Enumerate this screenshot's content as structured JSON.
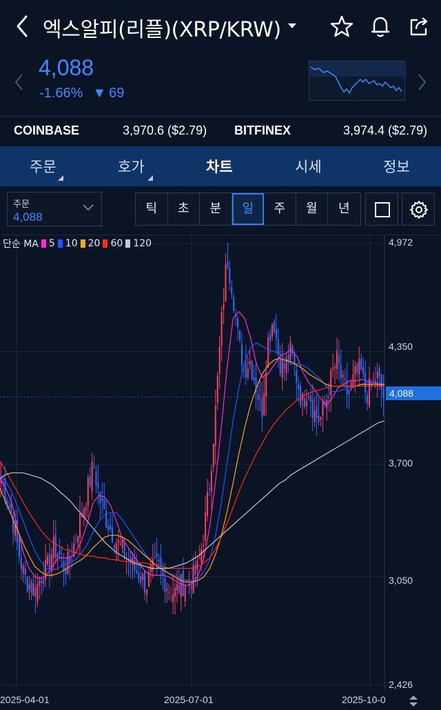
{
  "header": {
    "title": "엑스알피(리플)(XRP/KRW)",
    "icons": [
      "back-icon",
      "caret-down-icon",
      "star-icon",
      "bell-icon",
      "share-icon"
    ]
  },
  "price": {
    "current": "4,088",
    "change_pct": "-1.66%",
    "change_abs": "69",
    "color": "#3d8cff"
  },
  "exchanges": [
    {
      "name": "COINBASE",
      "value": "3,970.6 ($2.79)"
    },
    {
      "name": "BITFINEX",
      "value": "3,974.4 ($2.79)"
    }
  ],
  "tabs": [
    {
      "label": "주문",
      "active": false
    },
    {
      "label": "호가",
      "active": false
    },
    {
      "label": "차트",
      "active": true
    },
    {
      "label": "시세",
      "active": false
    },
    {
      "label": "정보",
      "active": false
    }
  ],
  "toolbar": {
    "order_label": "주문",
    "order_value": "4,088",
    "periods": [
      {
        "label": "틱",
        "selected": false
      },
      {
        "label": "초",
        "selected": false
      },
      {
        "label": "분",
        "selected": false
      },
      {
        "label": "일",
        "selected": true
      },
      {
        "label": "주",
        "selected": false
      },
      {
        "label": "월",
        "selected": false
      },
      {
        "label": "년",
        "selected": false
      }
    ]
  },
  "chart_legend": {
    "prefix": "단순 MA",
    "items": [
      {
        "label": "5",
        "color": "#ff2bd6"
      },
      {
        "label": "10",
        "color": "#2255ff"
      },
      {
        "label": "20",
        "color": "#ffa51c"
      },
      {
        "label": "60",
        "color": "#ff2a1a"
      },
      {
        "label": "120",
        "color": "#c8c8c8"
      }
    ]
  },
  "chart_data": {
    "type": "candlestick",
    "y_ticks": [
      "4,972",
      "4,350",
      "3,700",
      "3,050",
      "2,426"
    ],
    "x_ticks": [
      "2025-04-01",
      "2025-07-01",
      "2025-10-0"
    ],
    "ylim": [
      2426,
      4972
    ],
    "current_price_label": "4,088",
    "up_color": "#ff3b5c",
    "down_color": "#2f6bff",
    "close_path": [
      3620,
      3500,
      3380,
      3200,
      3050,
      3000,
      2980,
      3060,
      3100,
      3220,
      3180,
      3100,
      3150,
      3300,
      3420,
      3560,
      3700,
      3500,
      3400,
      3320,
      3250,
      3200,
      3150,
      3100,
      3060,
      3000,
      3080,
      3120,
      3050,
      2980,
      2960,
      3000,
      3020,
      3040,
      3100,
      3300,
      3600,
      4000,
      4500,
      4900,
      4700,
      4400,
      4250,
      4300,
      4150,
      4000,
      4400,
      4550,
      4300,
      4250,
      4350,
      4200,
      4050,
      4150,
      4000,
      3950,
      4050,
      4200,
      4300,
      4150,
      4100,
      4200,
      4250,
      4100,
      4150,
      4200,
      4088
    ],
    "ma_series": [
      {
        "label": "5",
        "color": "#ff2bd6",
        "values": [
          3620,
          3560,
          3480,
          3330,
          3190,
          3100,
          3050,
          3040,
          3060,
          3110,
          3160,
          3160,
          3160,
          3190,
          3260,
          3360,
          3480,
          3520,
          3510,
          3460,
          3370,
          3270,
          3220,
          3170,
          3120,
          3080,
          3060,
          3060,
          3060,
          3050,
          3030,
          3010,
          3000,
          3010,
          3060,
          3160,
          3340,
          3600,
          3920,
          4260,
          4540,
          4580,
          4540,
          4430,
          4280,
          4200,
          4220,
          4270,
          4320,
          4340,
          4360,
          4320,
          4230,
          4170,
          4130,
          4080,
          4040,
          4080,
          4140,
          4160,
          4180,
          4180,
          4190,
          4180,
          4170,
          4160,
          4150
        ]
      },
      {
        "label": "10",
        "color": "#2255ff",
        "values": [
          3640,
          3600,
          3540,
          3460,
          3370,
          3280,
          3200,
          3140,
          3100,
          3090,
          3100,
          3120,
          3130,
          3150,
          3190,
          3240,
          3310,
          3370,
          3410,
          3420,
          3420,
          3380,
          3330,
          3280,
          3230,
          3180,
          3140,
          3110,
          3090,
          3070,
          3060,
          3040,
          3030,
          3030,
          3040,
          3080,
          3150,
          3290,
          3480,
          3710,
          3950,
          4140,
          4290,
          4370,
          4400,
          4380,
          4360,
          4350,
          4340,
          4310,
          4280,
          4280,
          4270,
          4250,
          4220,
          4190,
          4150,
          4120,
          4120,
          4130,
          4140,
          4150,
          4160,
          4170,
          4170,
          4170,
          4160
        ]
      },
      {
        "label": "20",
        "color": "#ffa51c",
        "values": [
          3560,
          3480,
          3400,
          3320,
          3240,
          3170,
          3110,
          3080,
          3060,
          3060,
          3070,
          3090,
          3110,
          3130,
          3150,
          3180,
          3220,
          3250,
          3280,
          3290,
          3290,
          3280,
          3260,
          3230,
          3200,
          3170,
          3140,
          3110,
          3090,
          3070,
          3050,
          3030,
          3020,
          3020,
          3030,
          3050,
          3100,
          3180,
          3290,
          3430,
          3590,
          3760,
          3910,
          4040,
          4140,
          4220,
          4270,
          4300,
          4310,
          4300,
          4290,
          4270,
          4250,
          4220,
          4200,
          4180,
          4160,
          4150,
          4150,
          4150,
          4150,
          4150,
          4160,
          4160,
          4160,
          4160,
          4160
        ]
      },
      {
        "label": "60",
        "color": "#ff2a1a",
        "values": [
          3720,
          3660,
          3600,
          3540,
          3480,
          3420,
          3370,
          3320,
          3280,
          3250,
          3230,
          3210,
          3200,
          3190,
          3180,
          3170,
          3170,
          3160,
          3160,
          3150,
          3150,
          3140,
          3140,
          3140,
          3130,
          3130,
          3120,
          3120,
          3110,
          3100,
          3100,
          3100,
          3100,
          3100,
          3110,
          3130,
          3160,
          3210,
          3280,
          3360,
          3450,
          3540,
          3620,
          3690,
          3760,
          3820,
          3880,
          3930,
          3970,
          4010,
          4040,
          4070,
          4090,
          4110,
          4120,
          4130,
          4140,
          4150,
          4150,
          4150,
          4150,
          4150,
          4150,
          4150,
          4150,
          4150,
          4150
        ]
      },
      {
        "label": "120",
        "color": "#c8c8c8",
        "values": [
          3620,
          3640,
          3650,
          3650,
          3650,
          3640,
          3630,
          3620,
          3600,
          3580,
          3550,
          3520,
          3490,
          3450,
          3410,
          3370,
          3330,
          3290,
          3250,
          3220,
          3190,
          3170,
          3150,
          3130,
          3120,
          3110,
          3100,
          3100,
          3100,
          3100,
          3110,
          3120,
          3130,
          3150,
          3170,
          3200,
          3230,
          3260,
          3290,
          3320,
          3350,
          3380,
          3410,
          3440,
          3470,
          3500,
          3530,
          3560,
          3590,
          3610,
          3640,
          3660,
          3680,
          3700,
          3720,
          3740,
          3760,
          3780,
          3800,
          3820,
          3840,
          3860,
          3880,
          3900,
          3920,
          3940,
          3950
        ]
      }
    ],
    "note_series_are_visual_estimates": true
  }
}
